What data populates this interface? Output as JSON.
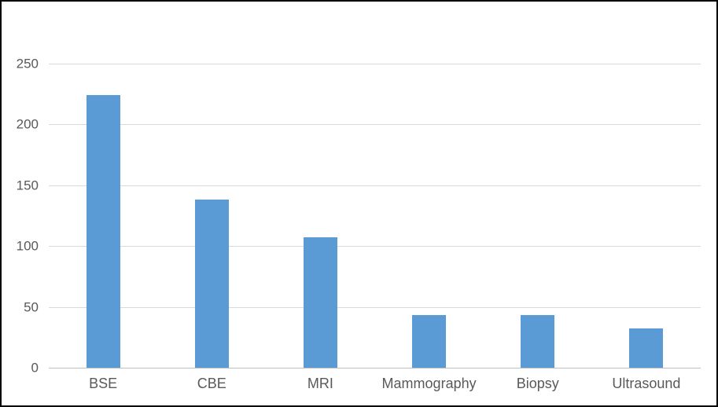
{
  "chart_data": {
    "type": "bar",
    "title": "",
    "categories": [
      "BSE",
      "CBE",
      "MRI",
      "Mammography",
      "Biopsy",
      "Ultrasound"
    ],
    "values": [
      224,
      138,
      107,
      43,
      43,
      32
    ],
    "xlabel": "",
    "ylabel": "",
    "ylim": [
      0,
      250
    ],
    "yticks": [
      0,
      50,
      100,
      150,
      200,
      250
    ],
    "grid": true,
    "legend": false,
    "bar_color": "#5B9BD5",
    "gridline_color": "#D9D9D9",
    "axis_line_color": "#BFBFBF",
    "tick_label_color": "#595959",
    "background_color": "#FFFFFF",
    "frame_border_color": "#000000"
  }
}
